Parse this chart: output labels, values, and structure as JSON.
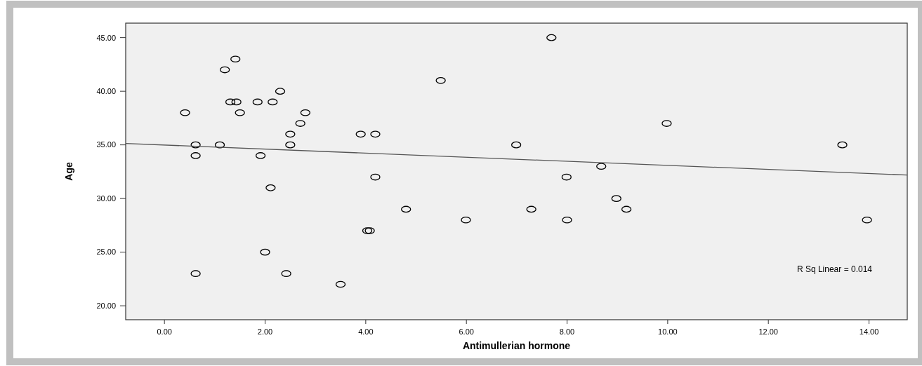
{
  "chart_data": {
    "type": "scatter",
    "xlabel": "Antimullerian hormone",
    "ylabel": "Age",
    "xlim": [
      -0.77,
      14.76
    ],
    "ylim": [
      18.7,
      46.35
    ],
    "xticks": [
      {
        "value": 0,
        "label": "0.00"
      },
      {
        "value": 2,
        "label": "2.00"
      },
      {
        "value": 4,
        "label": "4.00"
      },
      {
        "value": 6,
        "label": "6.00"
      },
      {
        "value": 8,
        "label": "8.00"
      },
      {
        "value": 10,
        "label": "10.00"
      },
      {
        "value": 12,
        "label": "12.00"
      },
      {
        "value": 14,
        "label": "14.00"
      }
    ],
    "yticks": [
      {
        "value": 20,
        "label": "20.00"
      },
      {
        "value": 25,
        "label": "25.00"
      },
      {
        "value": 30,
        "label": "30.00"
      },
      {
        "value": 35,
        "label": "35.00"
      },
      {
        "value": 40,
        "label": "40.00"
      },
      {
        "value": 45,
        "label": "45.00"
      }
    ],
    "grid": false,
    "annotations": [
      "R Sq Linear = 0.014"
    ],
    "series": [
      {
        "marker": "circle",
        "color": "#000000",
        "x": [
          1.41,
          1.2,
          2.3,
          1.31,
          1.43,
          1.85,
          2.15,
          0.41,
          1.5,
          2.8,
          2.7,
          2.5,
          3.9,
          4.19,
          0.62,
          1.1,
          2.5,
          0.62,
          1.91,
          2.11,
          4.19,
          4.03,
          4.08,
          2.0,
          0.62,
          2.42,
          3.5,
          7.69,
          5.49,
          6.99,
          8.68,
          7.99,
          8.98,
          4.8,
          7.29,
          9.18,
          5.99,
          8.0,
          9.98,
          13.47,
          13.96
        ],
        "values": [
          43,
          42,
          40,
          39,
          39,
          39,
          39,
          38,
          38,
          38,
          37,
          36,
          36,
          36,
          35,
          35,
          35,
          34,
          34,
          31,
          32,
          27,
          27,
          25,
          23,
          23,
          22,
          45,
          41,
          35,
          33,
          32,
          30,
          29,
          29,
          29,
          28,
          28,
          37,
          35,
          28
        ]
      },
      {
        "type": "line",
        "color": "#555555",
        "x": [
          -0.77,
          14.76
        ],
        "values": [
          35.13,
          32.19
        ],
        "line_style": "solid"
      }
    ]
  }
}
